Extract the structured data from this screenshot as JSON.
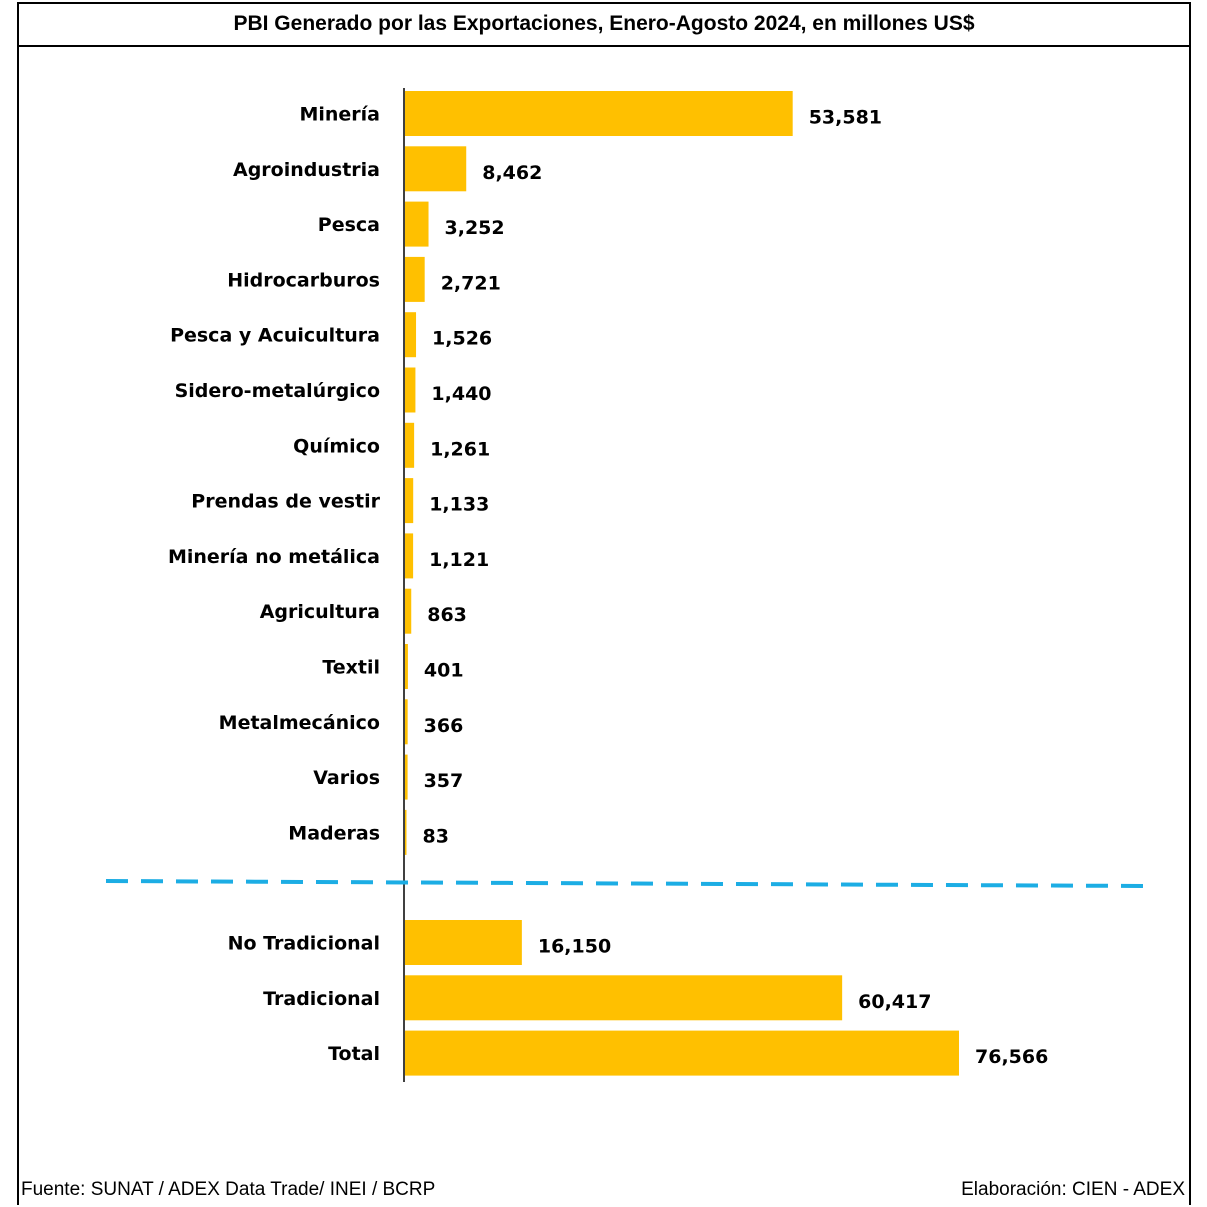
{
  "title": "PBI Generado por las Exportaciones, Enero-Agosto 2024, en millones US$",
  "footer": {
    "source": "Fuente: SUNAT / ADEX Data Trade/ INEI / BCRP",
    "credit": "Elaboración: CIEN - ADEX"
  },
  "chart_data": {
    "type": "bar",
    "orientation": "horizontal",
    "title": "PBI Generado por las Exportaciones, Enero-Agosto 2024, en millones US$",
    "xlabel": "",
    "ylabel": "",
    "bar_color": "#FFC000",
    "separator_color": "#1CADE4",
    "grid": false,
    "legend": "none",
    "groups": [
      {
        "categories": [
          "Minería",
          "Agroindustria",
          "Pesca",
          "Hidrocarburos",
          "Pesca y Acuicultura",
          "Sidero-metalúrgico",
          "Químico",
          "Prendas de vestir",
          "Minería no metálica",
          "Agricultura",
          "Textil",
          "Metalmecánico",
          "Varios",
          "Maderas"
        ],
        "values": [
          53581,
          8462,
          3252,
          2721,
          1526,
          1440,
          1261,
          1133,
          1121,
          863,
          401,
          366,
          357,
          83
        ],
        "labels": [
          "53,581",
          "8,462",
          "3,252",
          "2,721",
          "1,526",
          "1,440",
          "1,261",
          "1,133",
          "1,121",
          "863",
          "401",
          "366",
          "357",
          "83"
        ]
      },
      {
        "categories": [
          "No Tradicional",
          "Tradicional",
          "Total"
        ],
        "values": [
          16150,
          60417,
          76566
        ],
        "labels": [
          "16,150",
          "60,417",
          "76,566"
        ]
      }
    ]
  }
}
